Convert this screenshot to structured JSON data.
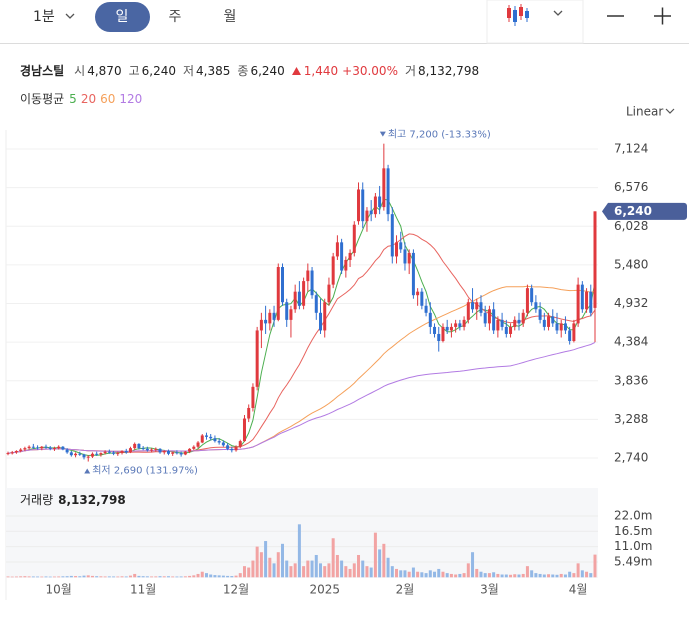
{
  "toolbar": {
    "interval": "1분",
    "tabs": [
      "일",
      "주",
      "월"
    ]
  },
  "header": {
    "name": "경남스틸",
    "stats": [
      {
        "label": "시",
        "value": "4,870"
      },
      {
        "label": "고",
        "value": "6,240"
      },
      {
        "label": "저",
        "value": "4,385"
      },
      {
        "label": "종",
        "value": "6,240"
      }
    ],
    "change": "1,440",
    "change_pct": "+30.00%",
    "volume_label": "거",
    "volume": "8,132,798"
  },
  "chart_data": {
    "type": "candlestick",
    "scale_label": "Linear",
    "ma_title": "이동평균",
    "moving_averages": [
      {
        "period": 5,
        "color": "#4caf50"
      },
      {
        "period": 20,
        "color": "#e8645f"
      },
      {
        "period": 60,
        "color": "#f5a05a"
      },
      {
        "period": 120,
        "color": "#b27be3"
      }
    ],
    "up_color": "#e0393e",
    "down_color": "#2f6fd0",
    "volume_up_color": "#f2a3a3",
    "volume_down_color": "#93b8e6",
    "ylim": [
      2428,
      7479
    ],
    "yticks": [
      {
        "value": 7124,
        "label": "7,124"
      },
      {
        "value": 6576,
        "label": "6,576"
      },
      {
        "value": 6028,
        "label": "6,028"
      },
      {
        "value": 5480,
        "label": "5,480"
      },
      {
        "value": 4932,
        "label": "4,932"
      },
      {
        "value": 4384,
        "label": "4,384"
      },
      {
        "value": 3836,
        "label": "3,836"
      },
      {
        "value": 3288,
        "label": "3,288"
      },
      {
        "value": 2740,
        "label": "2,740"
      }
    ],
    "grid": true,
    "last_price_label": "6,240",
    "high_label": "최고 7,200 (-13.33%)",
    "low_label": "최저 2,690 (131.97%)",
    "volume_title": "거래량",
    "volume_total": "8,132,798",
    "volume_lim": [
      0,
      31300000
    ],
    "volume_ticks": [
      {
        "value": 22000000,
        "label": "22.0m"
      },
      {
        "value": 16500000,
        "label": "16.5m"
      },
      {
        "value": 11000000,
        "label": "11.0m"
      },
      {
        "value": 5490000,
        "label": "5.49m"
      }
    ],
    "categories": [
      null,
      null,
      null,
      null,
      null,
      null,
      null,
      null,
      null,
      null,
      null,
      null,
      "10월",
      null,
      null,
      null,
      null,
      null,
      null,
      null,
      null,
      null,
      null,
      null,
      null,
      null,
      null,
      null,
      null,
      null,
      null,
      null,
      "11월",
      null,
      null,
      null,
      null,
      null,
      null,
      null,
      null,
      null,
      null,
      null,
      null,
      null,
      null,
      null,
      null,
      null,
      null,
      null,
      null,
      null,
      "12월",
      null,
      null,
      null,
      null,
      null,
      null,
      null,
      null,
      null,
      null,
      null,
      null,
      null,
      null,
      null,
      null,
      null,
      null,
      null,
      null,
      "2025",
      null,
      null,
      null,
      null,
      null,
      null,
      null,
      null,
      null,
      null,
      null,
      null,
      null,
      null,
      null,
      null,
      null,
      null,
      "2월",
      null,
      null,
      null,
      null,
      null,
      null,
      null,
      null,
      null,
      null,
      null,
      null,
      null,
      null,
      null,
      null,
      null,
      null,
      null,
      "3월",
      null,
      null,
      null,
      null,
      null,
      null,
      null,
      null,
      null,
      null,
      null,
      null,
      null,
      null,
      null,
      null,
      null,
      null,
      null,
      null,
      "4월",
      null,
      null,
      null,
      null
    ],
    "ohlc": [
      [
        2800,
        2830,
        2780,
        2810
      ],
      [
        2810,
        2840,
        2790,
        2820
      ],
      [
        2820,
        2850,
        2800,
        2840
      ],
      [
        2840,
        2880,
        2820,
        2860
      ],
      [
        2860,
        2900,
        2840,
        2880
      ],
      [
        2880,
        2920,
        2860,
        2900
      ],
      [
        2900,
        2940,
        2870,
        2890
      ],
      [
        2890,
        2920,
        2860,
        2880
      ],
      [
        2880,
        2910,
        2850,
        2900
      ],
      [
        2900,
        2930,
        2870,
        2890
      ],
      [
        2890,
        2910,
        2850,
        2870
      ],
      [
        2870,
        2900,
        2840,
        2880
      ],
      [
        2880,
        2920,
        2860,
        2900
      ],
      [
        2900,
        2910,
        2850,
        2860
      ],
      [
        2860,
        2880,
        2800,
        2820
      ],
      [
        2820,
        2840,
        2760,
        2780
      ],
      [
        2780,
        2820,
        2750,
        2800
      ],
      [
        2800,
        2830,
        2770,
        2790
      ],
      [
        2790,
        2800,
        2720,
        2750
      ],
      [
        2750,
        2780,
        2690,
        2760
      ],
      [
        2760,
        2820,
        2740,
        2800
      ],
      [
        2800,
        2830,
        2770,
        2790
      ],
      [
        2790,
        2820,
        2760,
        2810
      ],
      [
        2810,
        2850,
        2790,
        2830
      ],
      [
        2830,
        2860,
        2800,
        2820
      ],
      [
        2820,
        2840,
        2780,
        2800
      ],
      [
        2800,
        2830,
        2770,
        2810
      ],
      [
        2810,
        2850,
        2790,
        2840
      ],
      [
        2840,
        2870,
        2800,
        2820
      ],
      [
        2820,
        2900,
        2810,
        2880
      ],
      [
        2880,
        2960,
        2860,
        2940
      ],
      [
        2940,
        2950,
        2860,
        2880
      ],
      [
        2880,
        2910,
        2850,
        2870
      ],
      [
        2870,
        2900,
        2830,
        2850
      ],
      [
        2850,
        2880,
        2820,
        2860
      ],
      [
        2860,
        2890,
        2830,
        2870
      ],
      [
        2870,
        2880,
        2800,
        2820
      ],
      [
        2820,
        2850,
        2790,
        2840
      ],
      [
        2840,
        2860,
        2780,
        2800
      ],
      [
        2800,
        2830,
        2770,
        2820
      ],
      [
        2820,
        2850,
        2790,
        2810
      ],
      [
        2810,
        2830,
        2760,
        2790
      ],
      [
        2790,
        2840,
        2780,
        2830
      ],
      [
        2830,
        2880,
        2810,
        2870
      ],
      [
        2870,
        2920,
        2850,
        2900
      ],
      [
        2900,
        2980,
        2880,
        2960
      ],
      [
        2960,
        3080,
        2950,
        3060
      ],
      [
        3060,
        3100,
        3000,
        3040
      ],
      [
        3040,
        3080,
        2990,
        3020
      ],
      [
        3020,
        3060,
        2960,
        2980
      ],
      [
        2980,
        3020,
        2930,
        2960
      ],
      [
        2960,
        2990,
        2900,
        2920
      ],
      [
        2920,
        2950,
        2850,
        2870
      ],
      [
        2870,
        2900,
        2820,
        2850
      ],
      [
        2850,
        2920,
        2830,
        2900
      ],
      [
        2900,
        3000,
        2880,
        2980
      ],
      [
        2980,
        3350,
        2970,
        3300
      ],
      [
        3300,
        3500,
        3250,
        3450
      ],
      [
        3450,
        3800,
        3400,
        3750
      ],
      [
        3750,
        4600,
        3700,
        4550
      ],
      [
        4550,
        4800,
        4300,
        4700
      ],
      [
        4700,
        4900,
        4500,
        4650
      ],
      [
        4650,
        4850,
        4550,
        4800
      ],
      [
        4800,
        4900,
        4600,
        4700
      ],
      [
        4700,
        5500,
        4680,
        5450
      ],
      [
        5450,
        5500,
        4900,
        4950
      ],
      [
        4950,
        5000,
        4600,
        4700
      ],
      [
        4700,
        4900,
        4450,
        4850
      ],
      [
        4850,
        5200,
        4800,
        5100
      ],
      [
        5100,
        5250,
        4850,
        4900
      ],
      [
        4900,
        5300,
        4850,
        5250
      ],
      [
        5250,
        5500,
        5100,
        5400
      ],
      [
        5400,
        5450,
        5000,
        5050
      ],
      [
        5050,
        5100,
        4700,
        4800
      ],
      [
        4800,
        5000,
        4500,
        4550
      ],
      [
        4550,
        5000,
        4450,
        4950
      ],
      [
        4950,
        5300,
        4900,
        5200
      ],
      [
        5200,
        5650,
        5150,
        5600
      ],
      [
        5600,
        5900,
        5550,
        5800
      ],
      [
        5800,
        5850,
        5350,
        5400
      ],
      [
        5400,
        5600,
        5300,
        5550
      ],
      [
        5550,
        5700,
        5450,
        5650
      ],
      [
        5650,
        6100,
        5600,
        6050
      ],
      [
        6100,
        6650,
        6050,
        6550
      ],
      [
        6550,
        6650,
        6000,
        6100
      ],
      [
        6100,
        6300,
        5950,
        6250
      ],
      [
        6250,
        6400,
        6100,
        6200
      ],
      [
        6200,
        6500,
        6150,
        6450
      ],
      [
        6450,
        6600,
        6200,
        6300
      ],
      [
        6300,
        7200,
        6250,
        6850
      ],
      [
        6850,
        6900,
        6100,
        6200
      ],
      [
        6200,
        6300,
        5500,
        5600
      ],
      [
        5600,
        5900,
        5500,
        5800
      ],
      [
        5800,
        5950,
        5650,
        5700
      ],
      [
        5700,
        5800,
        5400,
        5500
      ],
      [
        5500,
        5700,
        5350,
        5650
      ],
      [
        5650,
        5700,
        5000,
        5050
      ],
      [
        5050,
        5150,
        4900,
        5100
      ],
      [
        5100,
        5150,
        4850,
        4900
      ],
      [
        4900,
        5000,
        4750,
        4800
      ],
      [
        4800,
        4950,
        4500,
        4600
      ],
      [
        4600,
        4650,
        4450,
        4500
      ],
      [
        4500,
        4600,
        4250,
        4400
      ],
      [
        4400,
        4650,
        4380,
        4600
      ],
      [
        4600,
        4700,
        4500,
        4550
      ],
      [
        4550,
        4650,
        4450,
        4600
      ],
      [
        4600,
        4700,
        4520,
        4650
      ],
      [
        4650,
        4700,
        4550,
        4600
      ],
      [
        4600,
        4750,
        4550,
        4700
      ],
      [
        4700,
        5000,
        4650,
        4950
      ],
      [
        4950,
        5150,
        4800,
        4850
      ],
      [
        4850,
        5000,
        4700,
        4950
      ],
      [
        4950,
        5050,
        4750,
        4800
      ],
      [
        4800,
        4900,
        4600,
        4650
      ],
      [
        4650,
        4900,
        4550,
        4850
      ],
      [
        4850,
        4950,
        4500,
        4550
      ],
      [
        4550,
        4750,
        4450,
        4700
      ],
      [
        4700,
        4800,
        4550,
        4600
      ],
      [
        4600,
        4700,
        4450,
        4500
      ],
      [
        4500,
        4650,
        4450,
        4600
      ],
      [
        4600,
        4750,
        4550,
        4700
      ],
      [
        4700,
        4800,
        4550,
        4650
      ],
      [
        4650,
        4850,
        4600,
        4800
      ],
      [
        4800,
        5200,
        4750,
        5150
      ],
      [
        5150,
        5200,
        4900,
        4950
      ],
      [
        4950,
        5050,
        4800,
        4850
      ],
      [
        4850,
        4950,
        4650,
        4700
      ],
      [
        4700,
        4800,
        4550,
        4600
      ],
      [
        4600,
        4800,
        4550,
        4750
      ],
      [
        4750,
        4850,
        4600,
        4650
      ],
      [
        4650,
        4800,
        4500,
        4550
      ],
      [
        4550,
        4700,
        4450,
        4650
      ],
      [
        4650,
        4750,
        4500,
        4550
      ],
      [
        4550,
        4600,
        4350,
        4400
      ],
      [
        4400,
        4700,
        4380,
        4650
      ],
      [
        4650,
        5300,
        4600,
        5200
      ],
      [
        5200,
        5250,
        4800,
        4850
      ],
      [
        4850,
        5150,
        4800,
        5100
      ],
      [
        5100,
        5200,
        4750,
        4800
      ],
      [
        4870,
        6240,
        4385,
        6240
      ]
    ],
    "volume": [
      300000,
      250000,
      280000,
      350000,
      400000,
      320000,
      300000,
      280000,
      260000,
      300000,
      250000,
      270000,
      300000,
      350000,
      400000,
      500000,
      450000,
      380000,
      600000,
      700000,
      500000,
      400000,
      350000,
      300000,
      320000,
      300000,
      280000,
      350000,
      300000,
      600000,
      1200000,
      500000,
      400000,
      350000,
      300000,
      320000,
      400000,
      350000,
      380000,
      300000,
      280000,
      300000,
      350000,
      500000,
      700000,
      1200000,
      2000000,
      1500000,
      1000000,
      800000,
      700000,
      600000,
      500000,
      450000,
      600000,
      1500000,
      4000000,
      3500000,
      6000000,
      11000000,
      9000000,
      13000000,
      7000000,
      5000000,
      9000000,
      12000000,
      6000000,
      4000000,
      5000000,
      19000000,
      4000000,
      6000000,
      6000000,
      8000000,
      5000000,
      4000000,
      5000000,
      14000000,
      8000000,
      6000000,
      4000000,
      3000000,
      5000000,
      8000000,
      6000000,
      4000000,
      3500000,
      16000000,
      10000000,
      12000000,
      7000000,
      4000000,
      3000000,
      2500000,
      2500000,
      2000000,
      3500000,
      2000000,
      1800000,
      1500000,
      2500000,
      2000000,
      3000000,
      2000000,
      1500000,
      1200000,
      1000000,
      1200000,
      1500000,
      5000000,
      9000000,
      3000000,
      2000000,
      1500000,
      1500000,
      1800000,
      1200000,
      1000000,
      1000000,
      900000,
      1100000,
      1000000,
      1200000,
      4000000,
      2500000,
      1500000,
      1200000,
      1000000,
      1100000,
      1000000,
      900000,
      1200000,
      1000000,
      2000000,
      1500000,
      5000000,
      2500000,
      2000000,
      1500000,
      8132798
    ]
  }
}
